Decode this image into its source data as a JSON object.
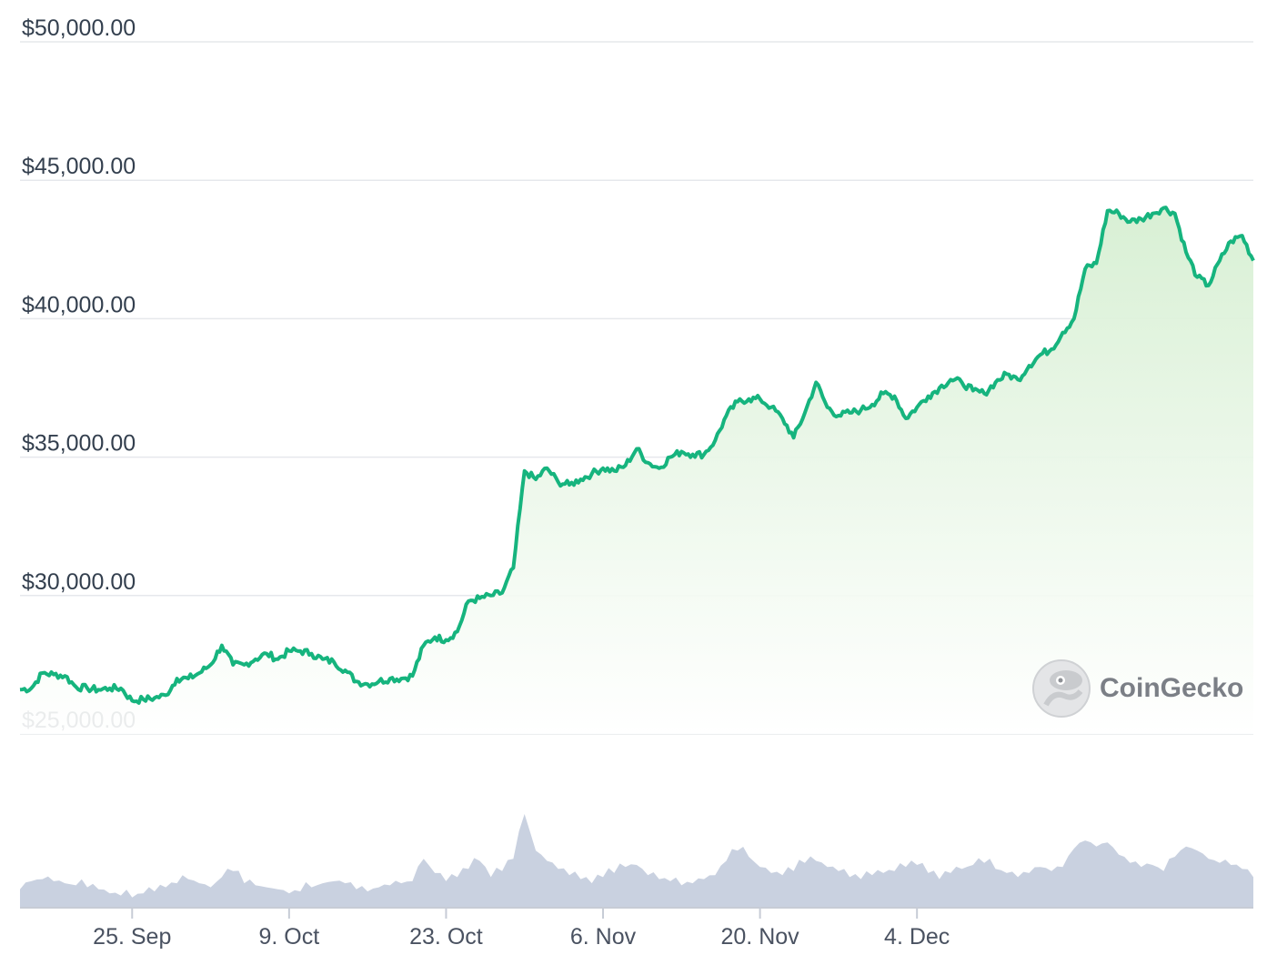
{
  "watermark": {
    "text": "CoinGecko"
  },
  "colors": {
    "price_line": "#16b47e",
    "area_top": "#d6efd2",
    "volume": "#c9d1e0",
    "grid": "#e6e8ec"
  },
  "chart_data": [
    {
      "type": "area",
      "series": [
        {
          "values": [
            [
              "2023-09-15",
              26600
            ],
            [
              "2023-09-16",
              26650
            ],
            [
              "2023-09-17",
              27200
            ],
            [
              "2023-09-18",
              27150
            ],
            [
              "2023-09-19",
              27100
            ],
            [
              "2023-09-20",
              26700
            ],
            [
              "2023-09-21",
              26650
            ],
            [
              "2023-09-22",
              26600
            ],
            [
              "2023-09-23",
              26650
            ],
            [
              "2023-09-24",
              26650
            ],
            [
              "2023-09-25",
              26200
            ],
            [
              "2023-09-26",
              26250
            ],
            [
              "2023-09-27",
              26300
            ],
            [
              "2023-09-28",
              26400
            ],
            [
              "2023-09-29",
              27000
            ],
            [
              "2023-09-30",
              27000
            ],
            [
              "2023-10-01",
              27200
            ],
            [
              "2023-10-02",
              27500
            ],
            [
              "2023-10-03",
              28200
            ],
            [
              "2023-10-04",
              27500
            ],
            [
              "2023-10-05",
              27500
            ],
            [
              "2023-10-06",
              27700
            ],
            [
              "2023-10-07",
              27900
            ],
            [
              "2023-10-08",
              27700
            ],
            [
              "2023-10-09",
              28000
            ],
            [
              "2023-10-10",
              28000
            ],
            [
              "2023-10-11",
              27900
            ],
            [
              "2023-10-12",
              27700
            ],
            [
              "2023-10-13",
              27600
            ],
            [
              "2023-10-14",
              27300
            ],
            [
              "2023-10-15",
              26900
            ],
            [
              "2023-10-16",
              26800
            ],
            [
              "2023-10-17",
              26900
            ],
            [
              "2023-10-18",
              27000
            ],
            [
              "2023-10-19",
              27000
            ],
            [
              "2023-10-20",
              27100
            ],
            [
              "2023-10-21",
              28200
            ],
            [
              "2023-10-22",
              28500
            ],
            [
              "2023-10-23",
              28400
            ],
            [
              "2023-10-24",
              28700
            ],
            [
              "2023-10-25",
              29800
            ],
            [
              "2023-10-26",
              29900
            ],
            [
              "2023-10-27",
              30000
            ],
            [
              "2023-10-28",
              30100
            ],
            [
              "2023-10-29",
              31000
            ],
            [
              "2023-10-30",
              34500
            ],
            [
              "2023-10-31",
              34200
            ],
            [
              "2023-11-01",
              34600
            ],
            [
              "2023-11-02",
              34100
            ],
            [
              "2023-11-03",
              34000
            ],
            [
              "2023-11-04",
              34200
            ],
            [
              "2023-11-05",
              34400
            ],
            [
              "2023-11-06",
              34600
            ],
            [
              "2023-11-07",
              34500
            ],
            [
              "2023-11-08",
              34700
            ],
            [
              "2023-11-09",
              35300
            ],
            [
              "2023-11-10",
              34800
            ],
            [
              "2023-11-11",
              34600
            ],
            [
              "2023-11-12",
              35000
            ],
            [
              "2023-11-13",
              35200
            ],
            [
              "2023-11-14",
              35100
            ],
            [
              "2023-11-15",
              35100
            ],
            [
              "2023-11-16",
              35600
            ],
            [
              "2023-11-17",
              36500
            ],
            [
              "2023-11-18",
              37000
            ],
            [
              "2023-11-19",
              37100
            ],
            [
              "2023-11-20",
              37100
            ],
            [
              "2023-11-21",
              36800
            ],
            [
              "2023-11-22",
              36400
            ],
            [
              "2023-11-23",
              35700
            ],
            [
              "2023-11-24",
              36600
            ],
            [
              "2023-11-25",
              37700
            ],
            [
              "2023-11-26",
              36800
            ],
            [
              "2023-11-27",
              36500
            ],
            [
              "2023-11-28",
              36600
            ],
            [
              "2023-11-29",
              36700
            ],
            [
              "2023-11-30",
              36900
            ],
            [
              "2023-12-01",
              37300
            ],
            [
              "2023-12-02",
              37200
            ],
            [
              "2023-12-03",
              36400
            ],
            [
              "2023-12-04",
              36800
            ],
            [
              "2023-12-05",
              37200
            ],
            [
              "2023-12-06",
              37500
            ],
            [
              "2023-12-07",
              37800
            ],
            [
              "2023-12-08",
              37700
            ],
            [
              "2023-12-09",
              37400
            ],
            [
              "2023-12-10",
              37300
            ],
            [
              "2023-12-11",
              37700
            ],
            [
              "2023-12-12",
              38000
            ],
            [
              "2023-12-13",
              37800
            ],
            [
              "2023-12-14",
              38300
            ],
            [
              "2023-12-15",
              38700
            ],
            [
              "2023-12-16",
              38900
            ],
            [
              "2023-12-17",
              39500
            ],
            [
              "2023-12-18",
              40000
            ],
            [
              "2023-12-19",
              41800
            ],
            [
              "2023-12-20",
              42000
            ],
            [
              "2023-12-21",
              43900
            ],
            [
              "2023-12-22",
              43800
            ],
            [
              "2023-12-23",
              43500
            ],
            [
              "2023-12-24",
              43600
            ],
            [
              "2023-12-25",
              43800
            ],
            [
              "2023-12-26",
              44000
            ],
            [
              "2023-12-27",
              43800
            ],
            [
              "2023-12-28",
              42400
            ],
            [
              "2023-12-29",
              41500
            ],
            [
              "2023-12-30",
              41200
            ],
            [
              "2023-12-31",
              42100
            ],
            [
              "2024-01-01",
              42800
            ],
            [
              "2024-01-02",
              43000
            ],
            [
              "2024-01-03",
              42100
            ]
          ]
        }
      ],
      "x_axis": {
        "ticks": [
          "25. Sep",
          "9. Oct",
          "23. Oct",
          "6. Nov",
          "20. Nov",
          "4. Dec"
        ]
      },
      "y_axis": {
        "ticks": [
          "$25,000.00",
          "$30,000.00",
          "$35,000.00",
          "$40,000.00",
          "$45,000.00",
          "$50,000.00"
        ],
        "range": [
          25000,
          50000
        ]
      },
      "grid": "horizontal"
    },
    {
      "type": "bar",
      "series": [
        {
          "values": [
            0.18,
            0.26,
            0.28,
            0.26,
            0.24,
            0.22,
            0.2,
            0.18,
            0.14,
            0.12,
            0.1,
            0.14,
            0.16,
            0.2,
            0.24,
            0.28,
            0.24,
            0.2,
            0.3,
            0.36,
            0.24,
            0.22,
            0.2,
            0.18,
            0.14,
            0.16,
            0.2,
            0.24,
            0.26,
            0.24,
            0.18,
            0.16,
            0.2,
            0.22,
            0.24,
            0.26,
            0.48,
            0.34,
            0.26,
            0.3,
            0.38,
            0.46,
            0.3,
            0.36,
            0.48,
            0.92,
            0.56,
            0.46,
            0.38,
            0.32,
            0.28,
            0.24,
            0.3,
            0.34,
            0.4,
            0.42,
            0.32,
            0.28,
            0.26,
            0.22,
            0.24,
            0.28,
            0.32,
            0.46,
            0.56,
            0.5,
            0.4,
            0.34,
            0.32,
            0.36,
            0.44,
            0.46,
            0.4,
            0.36,
            0.3,
            0.28,
            0.32,
            0.34,
            0.36,
            0.4,
            0.42,
            0.34,
            0.28,
            0.34,
            0.38,
            0.42,
            0.44,
            0.38,
            0.34,
            0.3,
            0.34,
            0.4,
            0.36,
            0.4,
            0.58,
            0.66,
            0.6,
            0.64,
            0.52,
            0.44,
            0.4,
            0.42,
            0.36,
            0.5,
            0.6,
            0.56,
            0.48,
            0.44,
            0.42,
            0.38,
            0.3
          ]
        }
      ]
    }
  ]
}
